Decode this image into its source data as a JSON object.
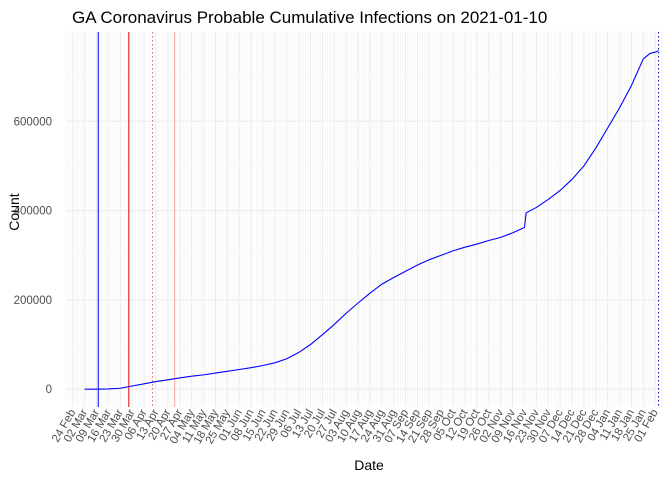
{
  "chart_data": {
    "type": "line",
    "title": "GA Coronavirus Probable Cumulative Infections on 2021-01-10",
    "xlabel": "Date",
    "ylabel": "Count",
    "x_type": "date",
    "xlim": [
      "2020-02-20",
      "2021-02-05"
    ],
    "ylim": [
      -40000,
      800000
    ],
    "yticks": [
      0,
      200000,
      400000,
      600000
    ],
    "ytick_labels": [
      "0",
      "200000",
      "400000",
      "600000"
    ],
    "xticks": [
      "2020-02-24",
      "2020-03-02",
      "2020-03-09",
      "2020-03-16",
      "2020-03-23",
      "2020-03-30",
      "2020-04-06",
      "2020-04-13",
      "2020-04-20",
      "2020-04-27",
      "2020-05-04",
      "2020-05-11",
      "2020-05-18",
      "2020-05-25",
      "2020-06-01",
      "2020-06-08",
      "2020-06-15",
      "2020-06-22",
      "2020-06-29",
      "2020-07-06",
      "2020-07-13",
      "2020-07-20",
      "2020-07-27",
      "2020-08-03",
      "2020-08-10",
      "2020-08-17",
      "2020-08-24",
      "2020-08-31",
      "2020-09-07",
      "2020-09-14",
      "2020-09-21",
      "2020-09-28",
      "2020-10-05",
      "2020-10-12",
      "2020-10-19",
      "2020-10-26",
      "2020-11-02",
      "2020-11-09",
      "2020-11-16",
      "2020-11-23",
      "2020-11-30",
      "2020-12-07",
      "2020-12-14",
      "2020-12-21",
      "2020-12-28",
      "2021-01-04",
      "2021-01-11",
      "2021-01-18",
      "2021-01-25",
      "2021-02-01"
    ],
    "xtick_labels": [
      "24 Feb",
      "02 Mar",
      "09 Mar",
      "16 Mar",
      "23 Mar",
      "30 Mar",
      "06 Apr",
      "13 Apr",
      "20 Apr",
      "27 Apr",
      "04 May",
      "11 May",
      "18 May",
      "25 May",
      "01 Jun",
      "08 Jun",
      "15 Jun",
      "22 Jun",
      "29 Jun",
      "06 Jul",
      "13 Jul",
      "20 Jul",
      "27 Jul",
      "03 Aug",
      "10 Aug",
      "17 Aug",
      "24 Aug",
      "31 Aug",
      "07 Sep",
      "14 Sep",
      "21 Sep",
      "28 Sep",
      "05 Oct",
      "12 Oct",
      "19 Oct",
      "26 Oct",
      "02 Nov",
      "09 Nov",
      "16 Nov",
      "23 Nov",
      "30 Nov",
      "07 Dec",
      "14 Dec",
      "21 Dec",
      "28 Dec",
      "04 Jan",
      "11 Jan",
      "18 Jan",
      "25 Jan",
      "01 Feb"
    ],
    "grid": true,
    "legend": "none",
    "series": [
      {
        "color": "#0000ff",
        "points": [
          [
            "2020-03-02",
            0
          ],
          [
            "2020-03-09",
            0
          ],
          [
            "2020-03-16",
            500
          ],
          [
            "2020-03-23",
            2000
          ],
          [
            "2020-03-30",
            7000
          ],
          [
            "2020-04-06",
            12000
          ],
          [
            "2020-04-13",
            17000
          ],
          [
            "2020-04-20",
            21000
          ],
          [
            "2020-04-27",
            25000
          ],
          [
            "2020-05-04",
            29000
          ],
          [
            "2020-05-11",
            32000
          ],
          [
            "2020-05-18",
            36000
          ],
          [
            "2020-05-25",
            40000
          ],
          [
            "2020-06-01",
            44000
          ],
          [
            "2020-06-08",
            48000
          ],
          [
            "2020-06-15",
            53000
          ],
          [
            "2020-06-22",
            59000
          ],
          [
            "2020-06-29",
            68000
          ],
          [
            "2020-07-06",
            82000
          ],
          [
            "2020-07-13",
            100000
          ],
          [
            "2020-07-20",
            122000
          ],
          [
            "2020-07-27",
            145000
          ],
          [
            "2020-08-03",
            170000
          ],
          [
            "2020-08-10",
            193000
          ],
          [
            "2020-08-17",
            215000
          ],
          [
            "2020-08-24",
            235000
          ],
          [
            "2020-08-31",
            250000
          ],
          [
            "2020-09-07",
            264000
          ],
          [
            "2020-09-14",
            278000
          ],
          [
            "2020-09-21",
            290000
          ],
          [
            "2020-09-28",
            300000
          ],
          [
            "2020-10-05",
            310000
          ],
          [
            "2020-10-12",
            318000
          ],
          [
            "2020-10-19",
            325000
          ],
          [
            "2020-10-26",
            333000
          ],
          [
            "2020-11-02",
            340000
          ],
          [
            "2020-11-09",
            350000
          ],
          [
            "2020-11-16",
            362000
          ],
          [
            "2020-11-17",
            395000
          ],
          [
            "2020-11-23",
            407000
          ],
          [
            "2020-11-30",
            425000
          ],
          [
            "2020-12-07",
            445000
          ],
          [
            "2020-12-14",
            470000
          ],
          [
            "2020-12-21",
            500000
          ],
          [
            "2020-12-28",
            540000
          ],
          [
            "2021-01-04",
            585000
          ],
          [
            "2021-01-11",
            630000
          ],
          [
            "2021-01-18",
            680000
          ],
          [
            "2021-01-25",
            740000
          ],
          [
            "2021-01-29",
            752000
          ],
          [
            "2021-02-01",
            755000
          ],
          [
            "2021-02-03",
            758000
          ]
        ]
      }
    ],
    "vlines": [
      {
        "date": "2020-03-10",
        "color": "#0000ff",
        "style": "solid"
      },
      {
        "date": "2020-03-28",
        "color": "#e00000",
        "style": "solid"
      },
      {
        "date": "2020-04-11",
        "color": "#e06060",
        "style": "dotted"
      },
      {
        "date": "2020-04-24",
        "color": "#f0a0a0",
        "style": "solid"
      },
      {
        "date": "2021-02-03",
        "color": "#0000cc",
        "style": "dotted"
      }
    ]
  }
}
